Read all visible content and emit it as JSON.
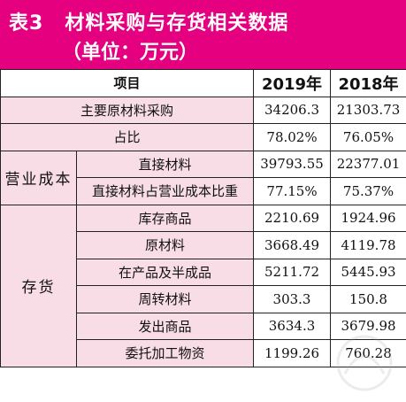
{
  "title": {
    "table_no": "表3",
    "name": "材料采购与存货相关数据",
    "unit": "（单位：万元）"
  },
  "columns": [
    "项目",
    "2019年",
    "2018年"
  ],
  "rows": {
    "main_purchase": {
      "label": "主要原材料采购",
      "v2019": "34206.3",
      "v2018": "21303.73"
    },
    "ratio": {
      "label": "占比",
      "v2019": "78.02%",
      "v2018": "76.05%"
    },
    "cost_group": {
      "label": "营业成本",
      "direct_material": {
        "label": "直接材料",
        "v2019": "39793.55",
        "v2018": "22377.01"
      },
      "direct_ratio": {
        "label": "直接材料占营业成本比重",
        "v2019": "77.15%",
        "v2018": "75.37%"
      }
    },
    "inventory_group": {
      "label": "存货",
      "items": [
        {
          "label": "库存商品",
          "v2019": "2210.69",
          "v2018": "1924.96"
        },
        {
          "label": "原材料",
          "v2019": "3668.49",
          "v2018": "4119.78"
        },
        {
          "label": "在产品及半成品",
          "v2019": "5211.72",
          "v2018": "5445.93"
        },
        {
          "label": "周转材料",
          "v2019": "303.3",
          "v2018": "150.8"
        },
        {
          "label": "发出商品",
          "v2019": "3634.3",
          "v2018": "3679.98"
        },
        {
          "label": "委托加工物资",
          "v2019": "1199.26",
          "v2018": "760.28"
        }
      ]
    }
  },
  "colors": {
    "header_bg": "#e4007f",
    "row_pink": "#f8dde6"
  }
}
